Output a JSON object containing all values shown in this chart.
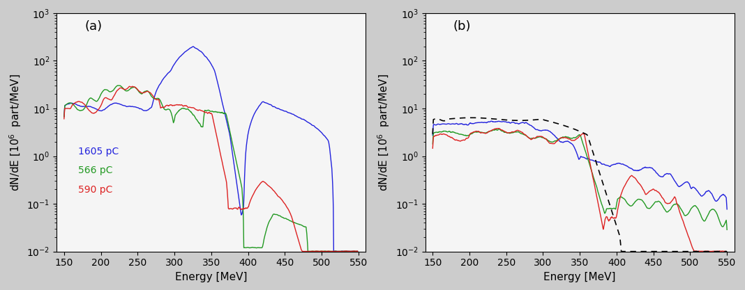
{
  "xlim": [
    140,
    560
  ],
  "ylim_log": [
    -2,
    3
  ],
  "xlabel": "Energy [MeV]",
  "ylabel": "dN/dE [10$^6$  part/MeV]",
  "panel_a_label": "(a)",
  "panel_b_label": "(b)",
  "legend_a": [
    "1605 pC",
    "566 pC",
    "590 pC"
  ],
  "colors_blue": "#2222dd",
  "colors_green": "#229922",
  "colors_red": "#dd2222",
  "bg_color": "#f5f5f5",
  "fig_bg": "#cccccc",
  "tick_fontsize": 10,
  "label_fontsize": 11
}
